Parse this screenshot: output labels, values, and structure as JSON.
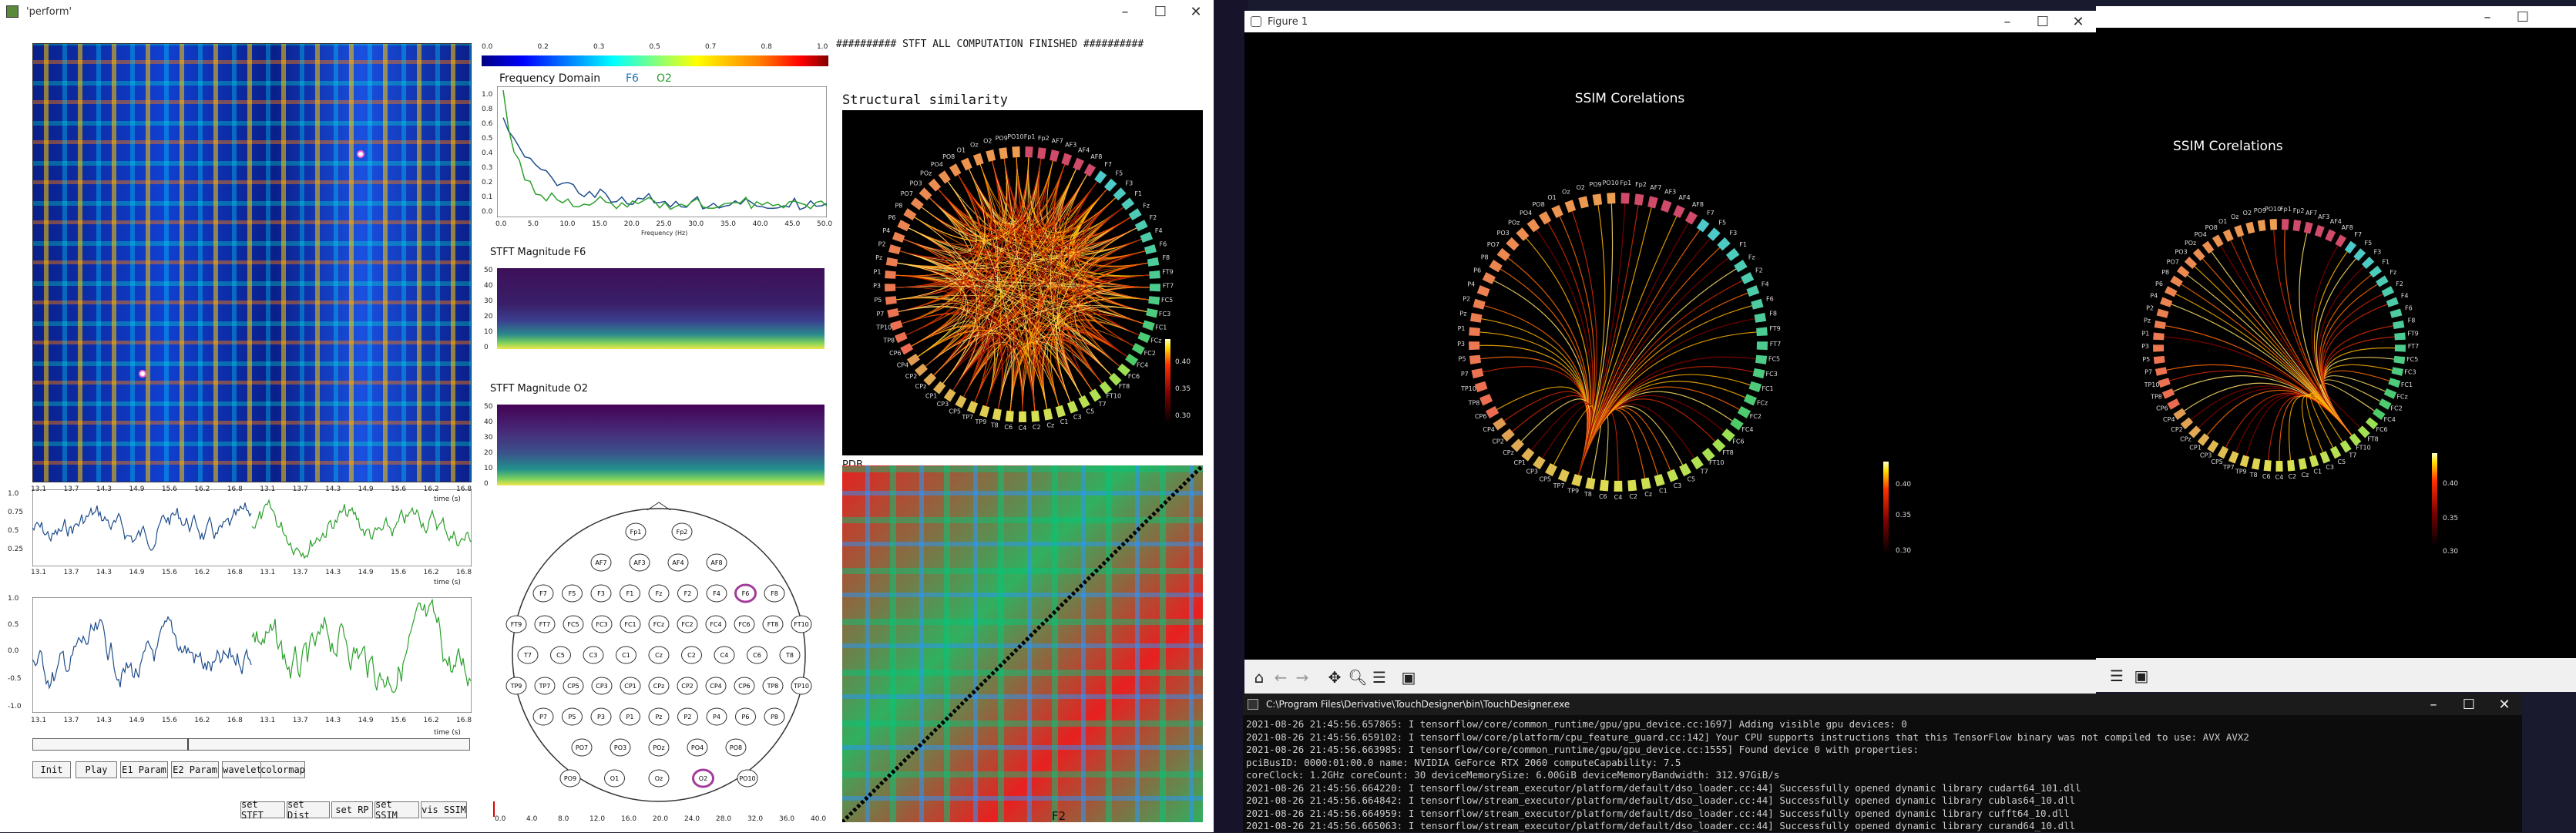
{
  "perform_window": {
    "title": "'perform'",
    "log_line": "########## STFT ALL COMPUTATION FINISHED ##########",
    "colorbar_ticks": [
      "0.0",
      "0.2",
      "0.3",
      "0.5",
      "0.7",
      "0.8",
      "1.0"
    ],
    "freq_title": "Frequency Domain",
    "freq_ch1": "F6",
    "freq_ch2": "O2",
    "freq_xlabel": "Frequency (Hz)",
    "freq_yticks": [
      "1.0",
      "0.8",
      "0.6",
      "0.5",
      "0.4",
      "0.3",
      "0.2",
      "0.1",
      "0.0"
    ],
    "freq_xticks": [
      "0.0",
      "5.0",
      "10.0",
      "15.0",
      "20.0",
      "25.0",
      "30.0",
      "35.0",
      "40.0",
      "45.0",
      "50.0"
    ],
    "stft_f6_title": "STFT Magnitude F6",
    "stft_o2_title": "STFT Magnitude O2",
    "stft_yticks": [
      "50",
      "40",
      "30",
      "20",
      "10",
      "0"
    ],
    "struct_title": "Structural similarity",
    "struct_colorbar": [
      "0.40",
      "0.35",
      "0.30"
    ],
    "pdb_label": "PDB",
    "f2_label": "F2",
    "time_ticks": [
      "13.1",
      "13.7",
      "14.3",
      "14.9",
      "15.6",
      "16.2",
      "16.8",
      "13.1",
      "13.7",
      "14.3",
      "14.9",
      "15.6",
      "16.2",
      "16.8"
    ],
    "time_label": "time (s)",
    "sig1_yticks": [
      "1.0",
      "0.75",
      "0.5",
      "0.25"
    ],
    "sig2_yticks": [
      "1.0",
      "0.5",
      "0.0",
      "-0.5",
      "-1.0"
    ],
    "bottom_xticks": [
      "0.0",
      "4.0",
      "8.0",
      "12.0",
      "16.0",
      "20.0",
      "24.0",
      "28.0",
      "32.0",
      "36.0",
      "40.0"
    ],
    "buttons": [
      "Init",
      "Play",
      "E1 Param",
      "E2 Param",
      "wavelets",
      "colormap"
    ],
    "buttons2": [
      "set STFT",
      "set Dist",
      "set RP",
      "set SSIM",
      "vis SSIM"
    ],
    "electrodes": [
      "Fp1",
      "Fp2",
      "AF7",
      "AF3",
      "AF4",
      "AF8",
      "F7",
      "F5",
      "F3",
      "F1",
      "Fz",
      "F2",
      "F4",
      "F6",
      "F8",
      "FT9",
      "FT7",
      "FC5",
      "FC3",
      "FC1",
      "FCz",
      "FC2",
      "FC4",
      "FC6",
      "FT8",
      "FT10",
      "T7",
      "C5",
      "C3",
      "C1",
      "Cz",
      "C2",
      "C4",
      "C6",
      "T8",
      "TP9",
      "TP7",
      "CP5",
      "CP3",
      "CP1",
      "CPz",
      "CP2",
      "CP4",
      "CP6",
      "TP8",
      "TP10",
      "P7",
      "P5",
      "P3",
      "P1",
      "Pz",
      "P2",
      "P4",
      "P6",
      "P8",
      "PO7",
      "PO3",
      "POz",
      "PO4",
      "PO8",
      "O1",
      "Oz",
      "O2",
      "PO9",
      "PO10"
    ],
    "highlight_electrodes": [
      "F6",
      "O2"
    ]
  },
  "figure1": {
    "title": "Figure 1",
    "chart_title": "SSIM Corelations",
    "colorbar": [
      "0.40",
      "0.35",
      "0.30"
    ]
  },
  "figure2": {
    "chart_title": "SSIM Corelations",
    "colorbar": [
      "0.40",
      "0.35",
      "0.30"
    ]
  },
  "console": {
    "title": "C:\\Program Files\\Derivative\\TouchDesigner\\bin\\TouchDesigner.exe",
    "lines": [
      "2021-08-26 21:45:56.657865: I tensorflow/core/common_runtime/gpu/gpu_device.cc:1697] Adding visible gpu devices: 0",
      "2021-08-26 21:45:56.659102: I tensorflow/core/platform/cpu_feature_guard.cc:142] Your CPU supports instructions that this TensorFlow binary was not compiled to use: AVX AVX2",
      "2021-08-26 21:45:56.663985: I tensorflow/core/common_runtime/gpu/gpu_device.cc:1555] Found device 0 with properties:",
      "pciBusID: 0000:01:00.0 name: NVIDIA GeForce RTX 2060 computeCapability: 7.5",
      "coreClock: 1.2GHz coreCount: 30 deviceMemorySize: 6.00GiB deviceMemoryBandwidth: 312.97GiB/s",
      "2021-08-26 21:45:56.664220: I tensorflow/stream_executor/platform/default/dso_loader.cc:44] Successfully opened dynamic library cudart64_101.dll",
      "2021-08-26 21:45:56.664842: I tensorflow/stream_executor/platform/default/dso_loader.cc:44] Successfully opened dynamic library cublas64_10.dll",
      "2021-08-26 21:45:56.664959: I tensorflow/stream_executor/platform/default/dso_loader.cc:44] Successfully opened dynamic library cufft64_10.dll",
      "2021-08-26 21:45:56.665063: I tensorflow/stream_executor/platform/default/dso_loader.cc:44] Successfully opened dynamic library curand64_10.dll"
    ]
  },
  "colors": {
    "accent_green": "#2ca02c",
    "accent_blue": "#1f4e8c",
    "ring_pink": "#a23c9a"
  }
}
